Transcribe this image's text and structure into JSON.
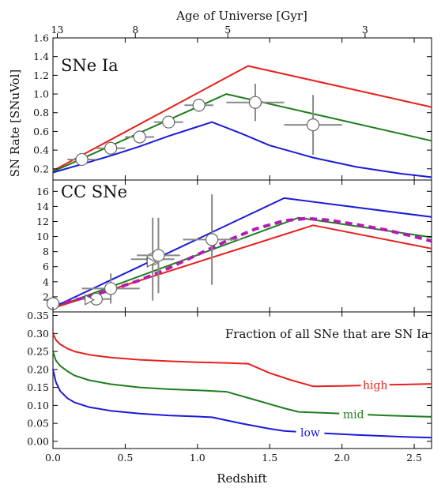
{
  "chart_data": {
    "type": "line",
    "xlabel": "Redshift",
    "x_ticks": [
      "0.0",
      "0.5",
      "1.0",
      "1.5",
      "2.0",
      "2.5"
    ],
    "xlim": [
      0,
      2.62
    ],
    "top_axis": {
      "label": "Age of Universe [Gyr]",
      "ticks": [
        {
          "label": "13",
          "z": 0.03
        },
        {
          "label": "8",
          "z": 0.57
        },
        {
          "label": "5",
          "z": 1.21
        },
        {
          "label": "3",
          "z": 2.16
        }
      ]
    },
    "colors": {
      "high": "#e8201c",
      "mid": "#1e7d1e",
      "low": "#1a1ad8",
      "dashed": "#b21bb2",
      "data": "#888888"
    },
    "panels": [
      {
        "id": "ia",
        "label": "SNe Ia",
        "ylabel": "SN Rate [SNuVol]",
        "ylim": [
          0.08,
          1.6
        ],
        "y_ticks": [
          "0.2",
          "0.4",
          "0.6",
          "0.8",
          "1.0",
          "1.2",
          "1.4",
          "1.6"
        ],
        "series": [
          {
            "key": "high",
            "x": [
              0,
              1.35,
              2.62
            ],
            "y": [
              0.18,
              1.3,
              0.86
            ]
          },
          {
            "key": "mid",
            "x": [
              0,
              1.2,
              2.62
            ],
            "y": [
              0.17,
              1.0,
              0.5
            ]
          },
          {
            "key": "low",
            "x": [
              0,
              0.2,
              0.4,
              0.6,
              0.8,
              1.0,
              1.1,
              1.3,
              1.5,
              1.8,
              2.1,
              2.4,
              2.62
            ],
            "y": [
              0.16,
              0.25,
              0.34,
              0.44,
              0.55,
              0.65,
              0.7,
              0.58,
              0.45,
              0.32,
              0.22,
              0.15,
              0.11
            ]
          }
        ],
        "points": [
          {
            "x": 0.2,
            "y": 0.3,
            "xerr": 0.1,
            "yerr": 0.04
          },
          {
            "x": 0.4,
            "y": 0.42,
            "xerr": 0.1,
            "yerr": 0.04
          },
          {
            "x": 0.6,
            "y": 0.54,
            "xerr": 0.1,
            "yerr": 0.04
          },
          {
            "x": 0.8,
            "y": 0.7,
            "xerr": 0.1,
            "yerr": 0.05
          },
          {
            "x": 1.01,
            "y": 0.88,
            "xerr": 0.1,
            "yerr": 0.07
          },
          {
            "x": 1.4,
            "y": 0.91,
            "xerr": 0.2,
            "yerr": 0.2
          },
          {
            "x": 1.8,
            "y": 0.67,
            "xerr": 0.2,
            "yerr": 0.32
          }
        ]
      },
      {
        "id": "cc",
        "label": "CC SNe",
        "ylim": [
          0,
          17.5
        ],
        "y_ticks": [
          "2",
          "4",
          "6",
          "8",
          "10",
          "12",
          "14",
          "16"
        ],
        "series": [
          {
            "key": "low",
            "x": [
              0,
              1.6,
              2.62
            ],
            "y": [
              0.6,
              15.1,
              12.6
            ]
          },
          {
            "key": "mid",
            "x": [
              0,
              1.7,
              2.62
            ],
            "y": [
              0.5,
              12.5,
              9.9
            ]
          },
          {
            "key": "high",
            "x": [
              0,
              1.8,
              2.62
            ],
            "y": [
              0.5,
              11.5,
              8.4
            ]
          },
          {
            "key": "dashed",
            "x": [
              0,
              0.2,
              0.4,
              0.6,
              0.8,
              1.0,
              1.2,
              1.4,
              1.6,
              1.75,
              1.9,
              2.1,
              2.3,
              2.5,
              2.62
            ],
            "y": [
              0.9,
              1.8,
              2.9,
              4.2,
              5.8,
              7.6,
              9.4,
              11.0,
              12.1,
              12.4,
              12.2,
              11.6,
              10.9,
              10.0,
              9.4
            ],
            "dashed": true
          }
        ],
        "points": [
          {
            "x": 0.0,
            "y": 1.1,
            "xerr": 0.02,
            "yerr": 0.3
          },
          {
            "x": 0.3,
            "y": 1.7,
            "xerr": 0.1,
            "yerr": 0.4
          },
          {
            "x": 0.4,
            "y": 3.1,
            "xerr": 0.2,
            "yerr": 2.0
          },
          {
            "x": 0.69,
            "y": 7.0,
            "xerr": 0.15,
            "yerr": 5.5
          },
          {
            "x": 0.73,
            "y": 7.5,
            "xerr": 0.15,
            "yerr": 5.0
          },
          {
            "x": 1.1,
            "y": 9.6,
            "xerr": 0.2,
            "yerr": 6.0
          }
        ],
        "triangles": [
          {
            "x": 0.25,
            "y": 1.6
          },
          {
            "x": 0.68,
            "y": 6.6
          }
        ]
      },
      {
        "id": "frac",
        "label": "Fraction of all SNe that are SN Ia",
        "ylim": [
          -0.02,
          0.36
        ],
        "y_ticks": [
          "0.00",
          "0.05",
          "0.10",
          "0.15",
          "0.20",
          "0.25",
          "0.30",
          "0.35"
        ],
        "series": [
          {
            "key": "high",
            "x": [
              0,
              0.02,
              0.05,
              0.1,
              0.15,
              0.25,
              0.4,
              0.6,
              0.8,
              1.0,
              1.2,
              1.35,
              1.5,
              1.65,
              1.8,
              2.0,
              2.3,
              2.62
            ],
            "y": [
              0.3,
              0.282,
              0.27,
              0.258,
              0.25,
              0.241,
              0.233,
              0.227,
              0.223,
              0.22,
              0.218,
              0.216,
              0.19,
              0.17,
              0.153,
              0.154,
              0.157,
              0.16
            ],
            "label": "high",
            "label_x": 2.23
          },
          {
            "key": "mid",
            "x": [
              0,
              0.02,
              0.05,
              0.1,
              0.15,
              0.25,
              0.4,
              0.6,
              0.8,
              1.0,
              1.2,
              1.4,
              1.6,
              1.7,
              2.0,
              2.3,
              2.62
            ],
            "y": [
              0.25,
              0.225,
              0.21,
              0.195,
              0.183,
              0.17,
              0.159,
              0.15,
              0.145,
              0.142,
              0.138,
              0.115,
              0.092,
              0.082,
              0.077,
              0.072,
              0.068
            ],
            "label": "mid",
            "label_x": 2.08
          },
          {
            "key": "low",
            "x": [
              0,
              0.02,
              0.05,
              0.1,
              0.15,
              0.25,
              0.4,
              0.6,
              0.8,
              1.0,
              1.1,
              1.3,
              1.5,
              1.6,
              1.8,
              2.1,
              2.4,
              2.62
            ],
            "y": [
              0.2,
              0.165,
              0.14,
              0.12,
              0.108,
              0.095,
              0.085,
              0.077,
              0.072,
              0.069,
              0.067,
              0.05,
              0.035,
              0.029,
              0.024,
              0.018,
              0.013,
              0.01
            ],
            "label": "low",
            "label_x": 1.78
          }
        ]
      }
    ]
  }
}
